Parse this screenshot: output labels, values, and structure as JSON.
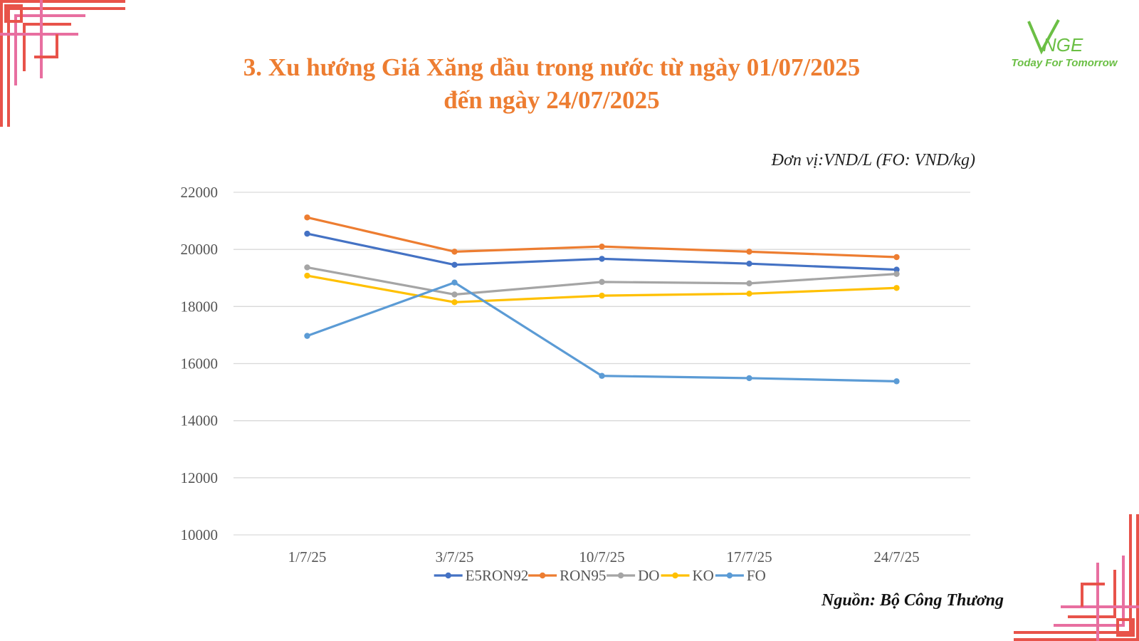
{
  "title_lines": [
    "3. Xu hướng Giá Xăng dầu trong nước từ ngày 01/07/2025",
    "đến ngày 24/07/2025"
  ],
  "logo": {
    "mark": "VNGE",
    "tagline": "Today For Tomorrow",
    "color": "#6BBF45"
  },
  "unit_note": "Đơn vị:VND/L (FO: VND/kg)",
  "source_note": "Nguồn: Bộ Công Thương",
  "decor": {
    "primary_color": "#E8534A",
    "accent_color": "#E86FA0"
  },
  "chart_data": {
    "type": "line",
    "title": "3. Xu hướng Giá Xăng dầu trong nước từ ngày 01/07/2025 đến ngày 24/07/2025",
    "categories": [
      "1/7/25",
      "3/7/25",
      "10/7/25",
      "17/7/25",
      "24/7/25"
    ],
    "ylim": [
      10000,
      22000
    ],
    "yticks": [
      10000,
      12000,
      14000,
      16000,
      18000,
      20000,
      22000
    ],
    "grid": true,
    "legend_position": "bottom",
    "series": [
      {
        "name": "E5RON92",
        "color": "#4472C4",
        "values": [
          20550,
          19460,
          19670,
          19500,
          19290
        ]
      },
      {
        "name": "RON95",
        "color": "#ED7D31",
        "values": [
          21120,
          19920,
          20100,
          19920,
          19730
        ]
      },
      {
        "name": "DO",
        "color": "#A5A5A5",
        "values": [
          19370,
          18420,
          18860,
          18810,
          19140
        ]
      },
      {
        "name": "KO",
        "color": "#FFC000",
        "values": [
          19080,
          18150,
          18380,
          18450,
          18650
        ]
      },
      {
        "name": "FO",
        "color": "#5B9BD5",
        "values": [
          16970,
          18840,
          15570,
          15490,
          15380
        ]
      }
    ]
  }
}
